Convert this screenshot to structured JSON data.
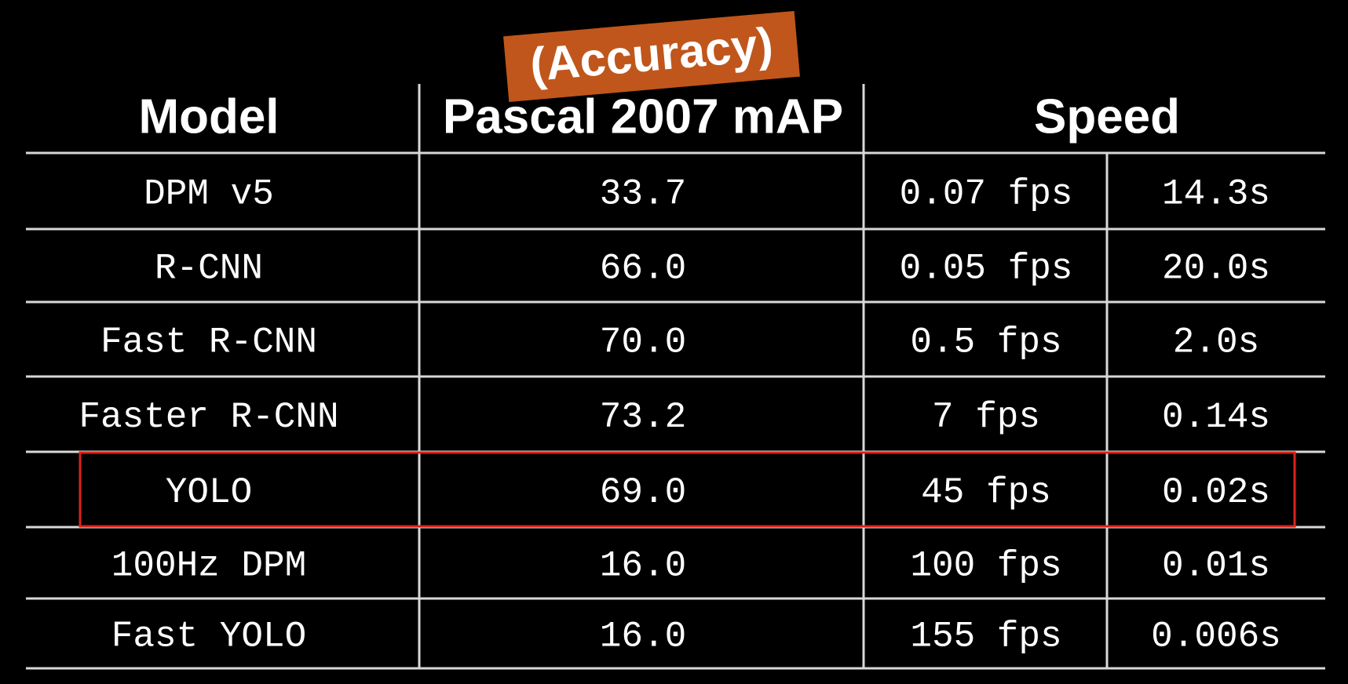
{
  "annotation": "(Accuracy)",
  "table": {
    "header": [
      "Model",
      "Pascal 2007 mAP",
      "Speed"
    ],
    "rows": [
      [
        "DPM v5",
        "33.7",
        "0.07 fps",
        "14.3s"
      ],
      [
        "R-CNN",
        "66.0",
        "0.05 fps",
        "20.0s"
      ],
      [
        "Fast R-CNN",
        "70.0",
        "0.5 fps",
        "2.0s"
      ],
      [
        "Faster R-CNN",
        "73.2",
        "7 fps",
        "0.14s"
      ],
      [
        "YOLO",
        "69.0",
        "45 fps",
        "0.02s"
      ],
      [
        "100Hz DPM",
        "16.0",
        "100 fps",
        "0.01s"
      ],
      [
        "Fast YOLO",
        "16.0",
        "155 fps",
        "0.006s"
      ]
    ]
  }
}
